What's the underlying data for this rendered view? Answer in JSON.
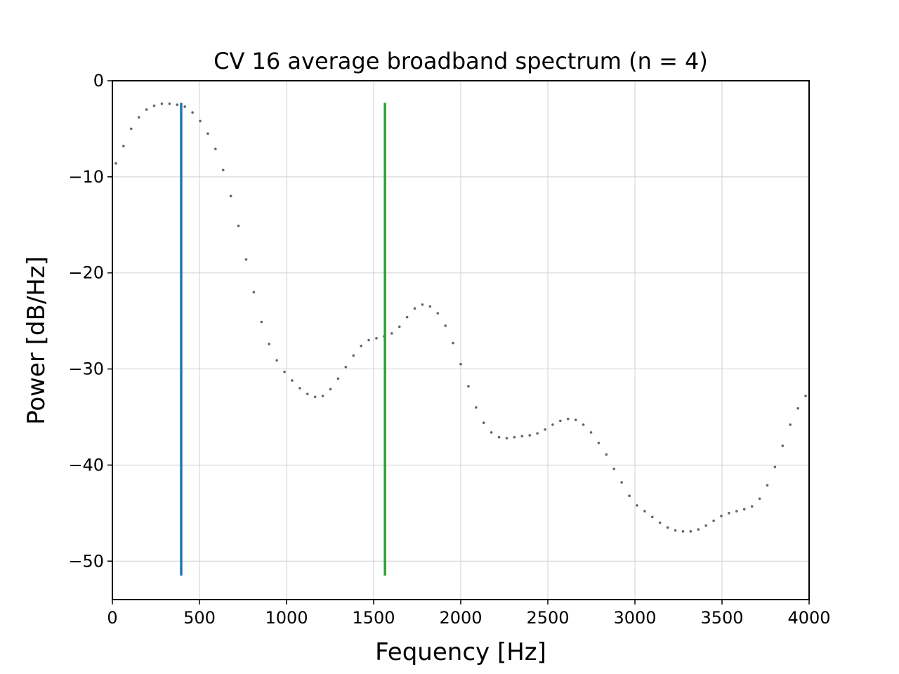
{
  "chart_data": {
    "type": "scatter",
    "title": "CV 16 average broadband spectrum (n = 4)",
    "xlabel": "Fequency [Hz]",
    "ylabel": "Power [dB/Hz]",
    "xlim": [
      0,
      4000
    ],
    "ylim": [
      -54,
      0
    ],
    "xticks": [
      0,
      500,
      1000,
      1500,
      2000,
      2500,
      3000,
      3500,
      4000
    ],
    "xtick_labels": [
      "0",
      "500",
      "1000",
      "1500",
      "2000",
      "2500",
      "3000",
      "3500",
      "4000"
    ],
    "yticks": [
      0,
      -10,
      -20,
      -30,
      -40,
      -50
    ],
    "ytick_labels": [
      "0",
      "−10",
      "−20",
      "−30",
      "−40",
      "−50"
    ],
    "grid": true,
    "series": [
      {
        "marker": "dot",
        "color": "#666666",
        "x": [
          20,
          64,
          108,
          152,
          196,
          240,
          284,
          328,
          372,
          416,
          460,
          504,
          548,
          592,
          636,
          680,
          724,
          768,
          812,
          856,
          900,
          944,
          988,
          1032,
          1076,
          1120,
          1164,
          1208,
          1252,
          1296,
          1340,
          1384,
          1428,
          1472,
          1516,
          1560,
          1604,
          1648,
          1692,
          1736,
          1780,
          1824,
          1868,
          1912,
          1956,
          2000,
          2044,
          2088,
          2132,
          2176,
          2220,
          2264,
          2308,
          2352,
          2396,
          2440,
          2484,
          2528,
          2572,
          2616,
          2660,
          2704,
          2748,
          2792,
          2836,
          2880,
          2924,
          2968,
          3012,
          3056,
          3100,
          3144,
          3188,
          3232,
          3276,
          3320,
          3364,
          3408,
          3452,
          3496,
          3540,
          3584,
          3628,
          3672,
          3716,
          3760,
          3804,
          3848,
          3892,
          3936,
          3980
        ],
        "y": [
          -8.6,
          -6.8,
          -5.0,
          -3.8,
          -3.0,
          -2.6,
          -2.4,
          -2.4,
          -2.5,
          -2.7,
          -3.3,
          -4.2,
          -5.5,
          -7.1,
          -9.3,
          -12.0,
          -15.1,
          -18.6,
          -22.0,
          -25.1,
          -27.4,
          -29.1,
          -30.3,
          -31.2,
          -32.0,
          -32.6,
          -32.9,
          -32.8,
          -32.1,
          -31.0,
          -29.8,
          -28.6,
          -27.6,
          -27.0,
          -26.8,
          -26.6,
          -26.3,
          -25.6,
          -24.6,
          -23.7,
          -23.3,
          -23.5,
          -24.2,
          -25.5,
          -27.3,
          -29.5,
          -31.8,
          -34.0,
          -35.6,
          -36.6,
          -37.1,
          -37.2,
          -37.1,
          -37.0,
          -36.9,
          -36.7,
          -36.3,
          -35.8,
          -35.4,
          -35.2,
          -35.3,
          -35.8,
          -36.6,
          -37.7,
          -38.9,
          -40.4,
          -41.8,
          -43.2,
          -44.2,
          -44.8,
          -45.4,
          -46.0,
          -46.5,
          -46.8,
          -46.9,
          -46.9,
          -46.7,
          -46.3,
          -45.8,
          -45.3,
          -45.0,
          -44.8,
          -44.6,
          -44.3,
          -43.5,
          -42.1,
          -40.2,
          -38.0,
          -35.8,
          -34.1,
          -32.8
        ]
      }
    ],
    "vlines": [
      {
        "x": 395,
        "ymin": -51.5,
        "ymax": -2.3,
        "color": "#1f77b4"
      },
      {
        "x": 1565,
        "ymin": -51.5,
        "ymax": -2.3,
        "color": "#2ca02c"
      }
    ]
  }
}
